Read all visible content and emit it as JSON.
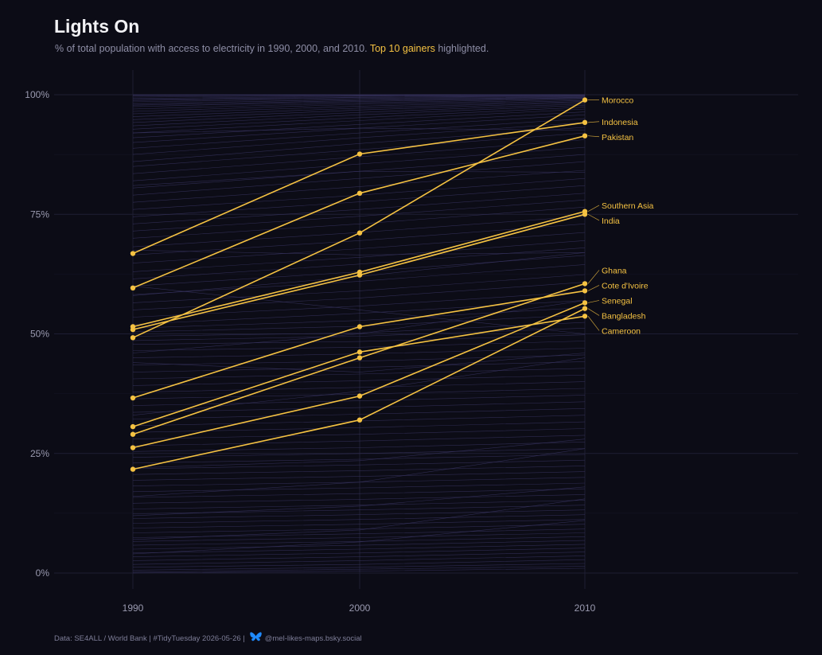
{
  "header": {
    "title": "Lights On",
    "subtitle_before": "% of total population with access to electricity in 1990, 2000, and 2010.",
    "subtitle_highlight": "Top 10 gainers",
    "subtitle_after": "highlighted."
  },
  "caption": {
    "text": "Data: SE4ALL / World Bank | #TidyTuesday 2026-05-26 |",
    "icon": "butterfly-icon",
    "handle": "@mel-likes-maps.bsky.social"
  },
  "colors": {
    "background": "#0c0c16",
    "grid": "#1e1e33",
    "background_lines": "#3b3766",
    "highlight": "#f5c242"
  },
  "chart_data": {
    "type": "line",
    "x": [
      1990,
      2000,
      2010
    ],
    "x_ticks": [
      "1990",
      "2000",
      "2010"
    ],
    "y_ticks": [
      "0%",
      "25%",
      "50%",
      "75%",
      "100%"
    ],
    "ylim": [
      0,
      100
    ],
    "highlighted": [
      {
        "name": "Morocco",
        "values": [
          49.2,
          71.1,
          98.9
        ]
      },
      {
        "name": "Indonesia",
        "values": [
          66.8,
          87.6,
          94.2
        ]
      },
      {
        "name": "Pakistan",
        "values": [
          59.6,
          79.4,
          91.4
        ]
      },
      {
        "name": "Southern Asia",
        "values": [
          51.5,
          62.9,
          75.6
        ]
      },
      {
        "name": "India",
        "values": [
          50.9,
          62.3,
          75.0
        ]
      },
      {
        "name": "Ghana",
        "values": [
          29.0,
          45.0,
          60.5
        ]
      },
      {
        "name": "Cote d'Ivoire",
        "values": [
          36.6,
          51.5,
          59.0
        ]
      },
      {
        "name": "Senegal",
        "values": [
          26.2,
          37.0,
          56.5
        ]
      },
      {
        "name": "Bangladesh",
        "values": [
          21.7,
          32.0,
          55.3
        ]
      },
      {
        "name": "Cameroon",
        "values": [
          30.6,
          46.2,
          53.7
        ]
      }
    ],
    "background_series": [
      [
        100,
        100,
        100
      ],
      [
        99.9,
        100,
        100
      ],
      [
        99.8,
        99.9,
        100
      ],
      [
        99.5,
        99.8,
        100
      ],
      [
        99.2,
        99.7,
        99.9
      ],
      [
        99,
        99.5,
        99.8
      ],
      [
        98.8,
        99.4,
        99.7
      ],
      [
        98.5,
        99.2,
        99.6
      ],
      [
        98.1,
        99,
        99.5
      ],
      [
        97.8,
        98.8,
        99.4
      ],
      [
        97.5,
        98.6,
        99.3
      ],
      [
        97,
        98.3,
        99.2
      ],
      [
        96.5,
        98,
        99
      ],
      [
        96,
        97.6,
        98.8
      ],
      [
        95.4,
        97.2,
        98.6
      ],
      [
        94.8,
        96.8,
        98.4
      ],
      [
        94.2,
        96.3,
        98.1
      ],
      [
        93.5,
        95.8,
        97.8
      ],
      [
        92.8,
        95.2,
        97.4
      ],
      [
        92,
        94.6,
        97
      ],
      [
        91,
        93.8,
        96.4
      ],
      [
        90,
        93,
        95.8
      ],
      [
        88.8,
        92,
        95
      ],
      [
        87.5,
        91,
        94.2
      ],
      [
        86,
        89.8,
        93.2
      ],
      [
        85,
        88.5,
        92
      ],
      [
        83.5,
        87,
        90.6
      ],
      [
        82,
        85.5,
        89
      ],
      [
        80.5,
        84,
        87.5
      ],
      [
        79,
        82.5,
        86
      ],
      [
        77.5,
        80.8,
        84.2
      ],
      [
        76,
        79,
        82.5
      ],
      [
        74.5,
        77.6,
        81
      ],
      [
        73,
        76,
        79.4
      ],
      [
        71.5,
        74.6,
        78
      ],
      [
        70,
        73,
        76.5
      ],
      [
        68.2,
        71.2,
        74.6
      ],
      [
        66.5,
        69.5,
        73
      ],
      [
        64.8,
        67.8,
        71.2
      ],
      [
        63,
        66,
        69.5
      ],
      [
        61.5,
        64.6,
        68
      ],
      [
        60,
        63,
        66.4
      ],
      [
        58.2,
        61,
        64.5
      ],
      [
        56.5,
        59,
        62.4
      ],
      [
        55,
        57.5,
        60.8
      ],
      [
        53.5,
        55.8,
        58.8
      ],
      [
        52,
        54.3,
        57
      ],
      [
        51.2,
        52.8,
        55.5
      ],
      [
        50.4,
        51.6,
        54
      ],
      [
        49.5,
        50.2,
        52.4
      ],
      [
        48.6,
        49.5,
        51.2
      ],
      [
        47.8,
        48.4,
        49.8
      ],
      [
        46.5,
        47.2,
        48.5
      ],
      [
        45,
        45.8,
        47
      ],
      [
        43.5,
        44.3,
        45.6
      ],
      [
        42,
        43,
        44.2
      ],
      [
        40.6,
        41.6,
        42.8
      ],
      [
        39.2,
        40.2,
        41.4
      ],
      [
        37.8,
        38.8,
        40
      ],
      [
        36.4,
        37.4,
        38.6
      ],
      [
        35,
        36,
        37.2
      ],
      [
        33.6,
        34.6,
        35.8
      ],
      [
        32.2,
        33.2,
        34.4
      ],
      [
        30.8,
        31.8,
        33
      ],
      [
        29.4,
        30.4,
        31.6
      ],
      [
        28,
        29,
        30.2
      ],
      [
        26.6,
        27.6,
        28.8
      ],
      [
        25.4,
        26.2,
        27.4
      ],
      [
        24.2,
        25,
        26
      ],
      [
        23,
        23.8,
        24.8
      ],
      [
        21.8,
        22.6,
        23.6
      ],
      [
        20.6,
        21.4,
        22.4
      ],
      [
        19.4,
        20.2,
        21.2
      ],
      [
        18.2,
        19,
        20
      ],
      [
        17,
        17.8,
        18.8
      ],
      [
        15.8,
        16.6,
        17.6
      ],
      [
        14.6,
        15.4,
        16.4
      ],
      [
        13.4,
        14.2,
        15.2
      ],
      [
        12.4,
        13.2,
        14.2
      ],
      [
        11.4,
        12.2,
        13.2
      ],
      [
        10.4,
        11.2,
        12.2
      ],
      [
        9.4,
        10.2,
        11.2
      ],
      [
        8.4,
        9.2,
        10.2
      ],
      [
        7.4,
        8.2,
        9.2
      ],
      [
        6.6,
        7.4,
        8.4
      ],
      [
        5.8,
        6.6,
        7.6
      ],
      [
        5,
        5.8,
        6.8
      ],
      [
        4.2,
        5,
        6
      ],
      [
        3.4,
        4.2,
        5.2
      ],
      [
        2.6,
        3.4,
        4.4
      ],
      [
        1.8,
        2.6,
        3.6
      ],
      [
        1.2,
        1.8,
        2.8
      ],
      [
        0.6,
        1.2,
        2
      ],
      [
        0.2,
        0.8,
        1.4
      ],
      [
        0,
        0.4,
        1
      ],
      [
        60,
        55,
        50
      ],
      [
        58,
        62,
        67
      ],
      [
        81,
        84,
        83.8
      ],
      [
        92,
        93,
        92.6
      ],
      [
        46,
        50,
        57
      ],
      [
        22,
        23.5,
        28
      ],
      [
        12,
        14,
        18
      ],
      [
        4,
        6.5,
        11
      ],
      [
        7,
        9,
        15.5
      ],
      [
        16,
        19,
        26
      ],
      [
        44,
        42,
        46
      ],
      [
        33,
        38,
        45
      ],
      [
        67.5,
        66.5,
        67
      ]
    ]
  }
}
